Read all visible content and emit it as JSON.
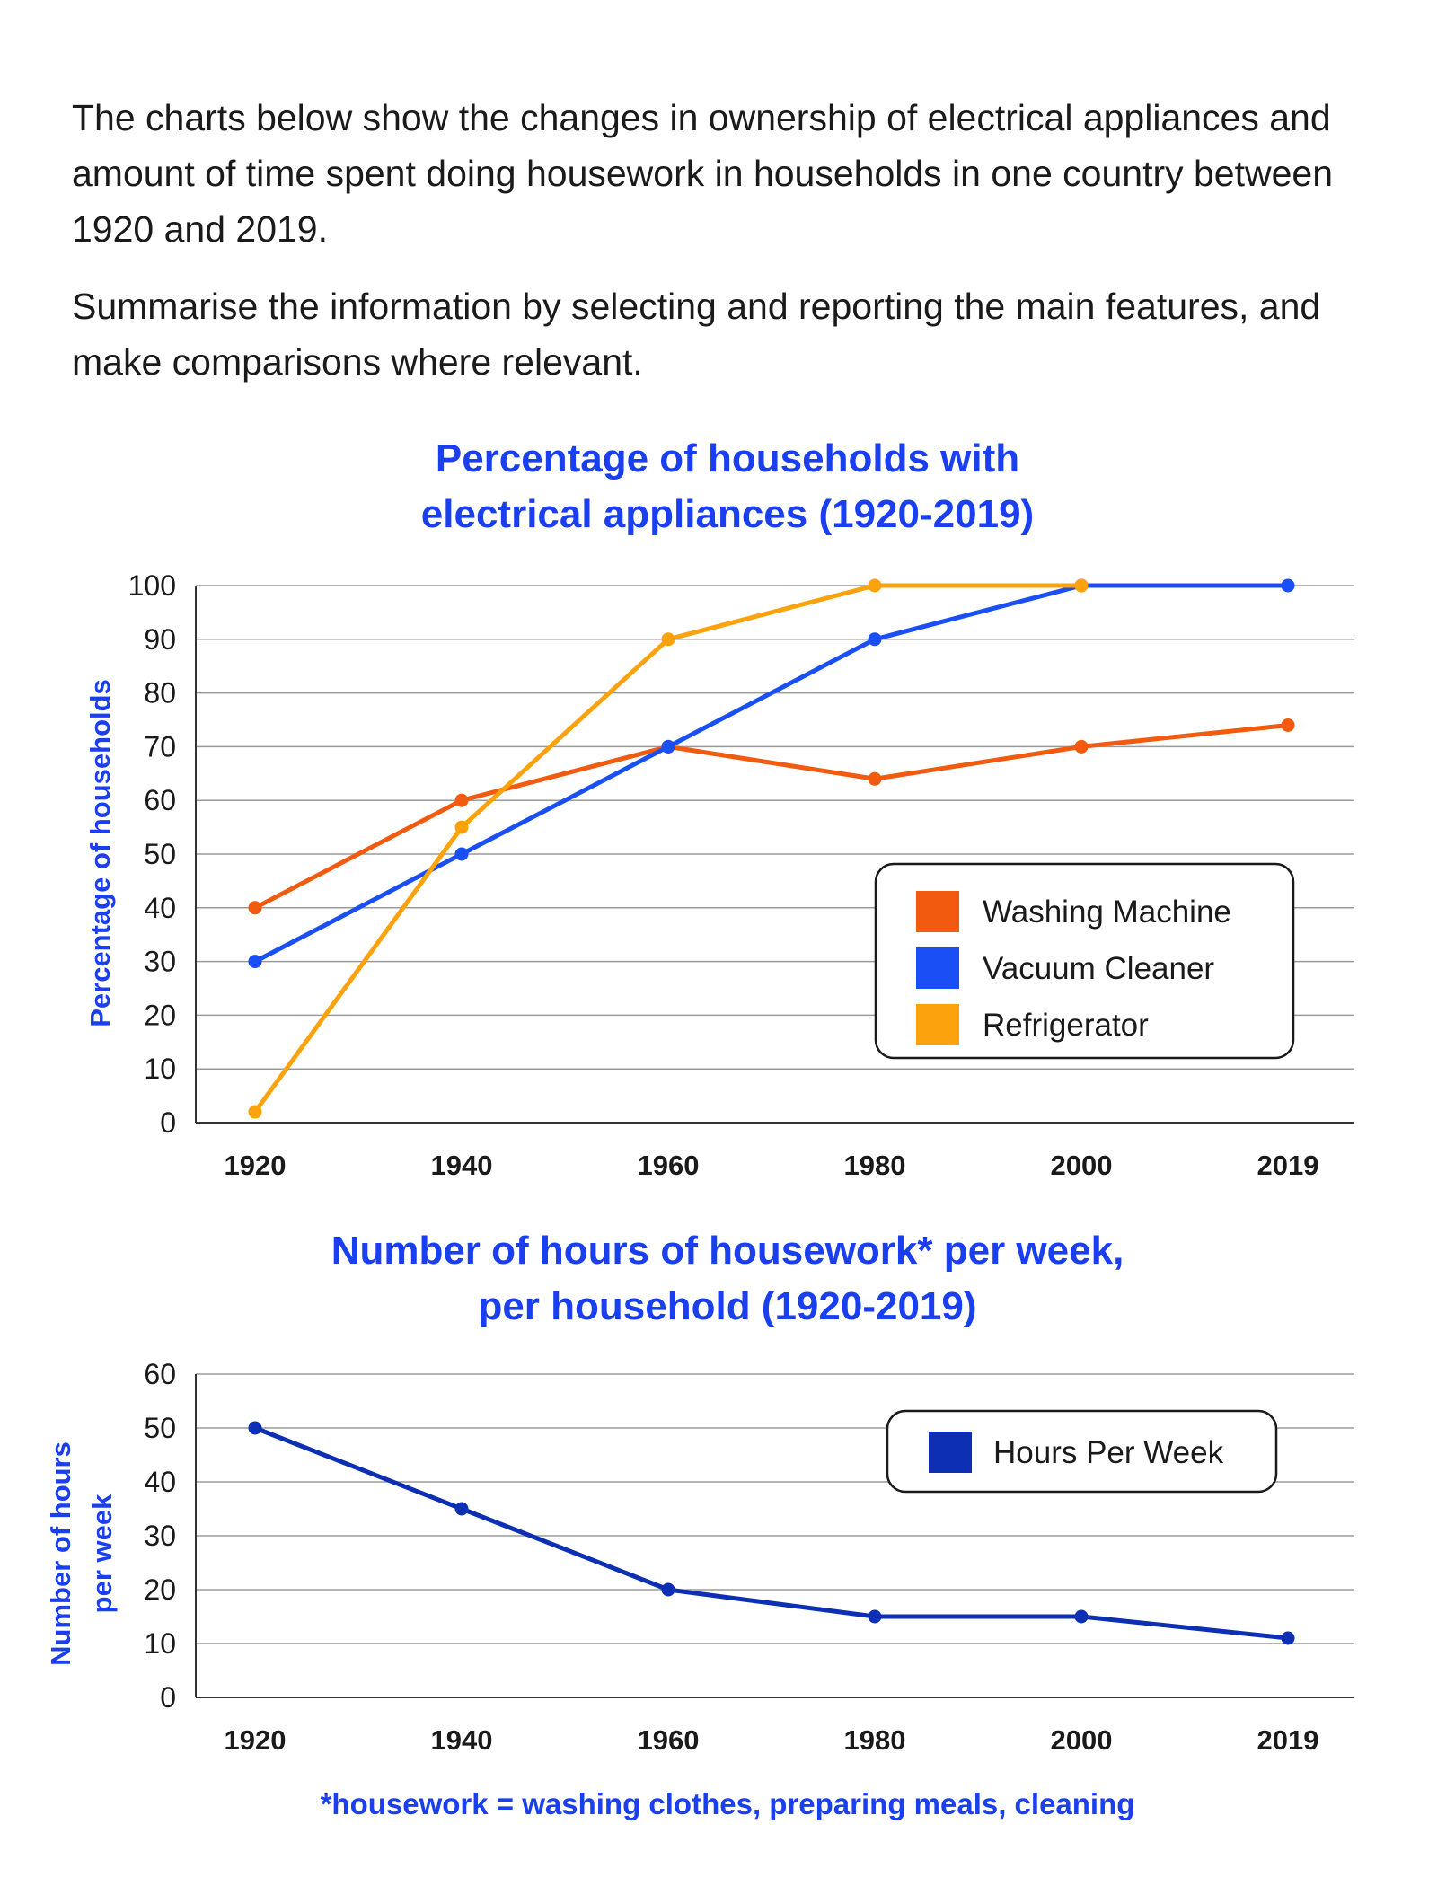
{
  "prompt": {
    "paragraph1": "The charts below show the changes in ownership of electrical appliances and amount of time spent doing housework in households in one country between 1920 and 2019.",
    "paragraph2": "Summarise the information by selecting and reporting the main features, and make comparisons where relevant."
  },
  "colors": {
    "washing": "#f15a0f",
    "vacuum": "#1a4ff5",
    "fridge": "#fba20c",
    "hours": "#0c2fb3",
    "title": "#1a3ff0",
    "grid": "#9a9a9a"
  },
  "footnote": "*housework = washing clothes, preparing meals, cleaning",
  "chart_data": [
    {
      "type": "line",
      "title_line1": "Percentage of households with",
      "title_line2": "electrical appliances (1920-2019)",
      "ylabel": "Percentage of households",
      "xlabel": "",
      "categories": [
        "1920",
        "1940",
        "1960",
        "1980",
        "2000",
        "2019"
      ],
      "ylim": [
        0,
        100
      ],
      "yticks": [
        0,
        10,
        20,
        30,
        40,
        50,
        60,
        70,
        80,
        90,
        100
      ],
      "grid": true,
      "legend_position": "right",
      "series": [
        {
          "name": "Washing Machine",
          "key": "washing",
          "values": [
            40,
            60,
            70,
            64,
            70,
            74
          ]
        },
        {
          "name": "Vacuum Cleaner",
          "key": "vacuum",
          "values": [
            30,
            50,
            70,
            90,
            100,
            100
          ]
        },
        {
          "name": "Refrigerator",
          "key": "fridge",
          "values": [
            2,
            55,
            90,
            100,
            100,
            null
          ]
        }
      ]
    },
    {
      "type": "line",
      "title_line1": "Number of hours of housework* per week,",
      "title_line2": "per household (1920-2019)",
      "ylabel_line1": "Number of hours",
      "ylabel_line2": "per week",
      "xlabel": "",
      "categories": [
        "1920",
        "1940",
        "1960",
        "1980",
        "2000",
        "2019"
      ],
      "ylim": [
        0,
        60
      ],
      "yticks": [
        0,
        10,
        20,
        30,
        40,
        50,
        60
      ],
      "grid": true,
      "legend_position": "top-right",
      "series": [
        {
          "name": "Hours Per Week",
          "key": "hours",
          "values": [
            50,
            35,
            20,
            15,
            15,
            11
          ]
        }
      ]
    }
  ]
}
